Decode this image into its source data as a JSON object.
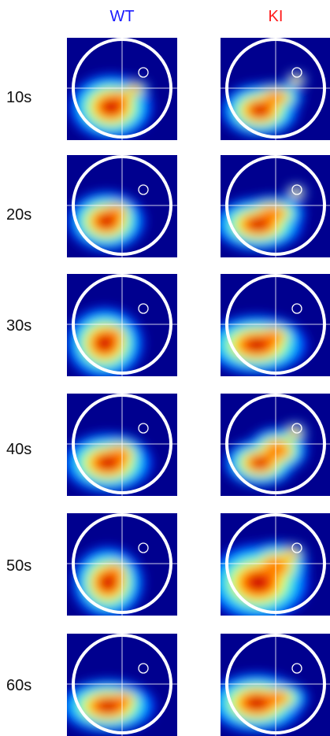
{
  "columns": [
    {
      "label": "WT",
      "color": "#1a1aff"
    },
    {
      "label": "KI",
      "color": "#ff1a1a"
    }
  ],
  "rows": [
    {
      "label": "10s"
    },
    {
      "label": "20s"
    },
    {
      "label": "30s"
    },
    {
      "label": "40s"
    },
    {
      "label": "50s"
    },
    {
      "label": "60s"
    }
  ],
  "colormap": [
    "#00008f",
    "#0030ff",
    "#00bfff",
    "#40ffbf",
    "#ffff00",
    "#ff8000",
    "#ff0000",
    "#b00000"
  ]
}
